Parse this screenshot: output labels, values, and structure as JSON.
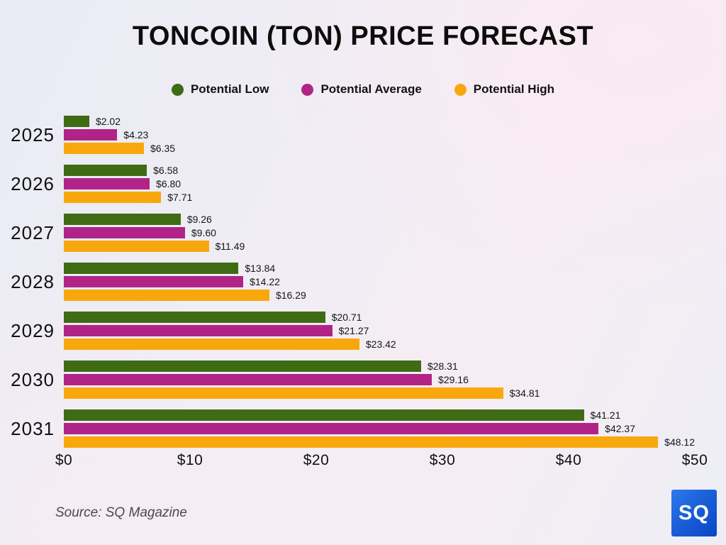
{
  "title": "TONCOIN (TON) PRICE FORECAST",
  "legend": {
    "items": [
      {
        "label": "Potential Low",
        "color": "#3f6b15"
      },
      {
        "label": "Potential Average",
        "color": "#b12487"
      },
      {
        "label": "Potential High",
        "color": "#f8a80d"
      }
    ]
  },
  "chart_data": {
    "type": "bar",
    "orientation": "horizontal",
    "title": "TONCOIN (TON) PRICE FORECAST",
    "categories": [
      "2025",
      "2026",
      "2027",
      "2028",
      "2029",
      "2030",
      "2031"
    ],
    "series": [
      {
        "name": "Potential Low",
        "color": "#3f6b15",
        "values": [
          2.02,
          6.58,
          9.26,
          13.84,
          20.71,
          28.31,
          41.21
        ],
        "value_labels": [
          "$2.02",
          "$6.58",
          "$9.26",
          "$13.84",
          "$20.71",
          "$28.31",
          "$41.21"
        ]
      },
      {
        "name": "Potential Average",
        "color": "#b12487",
        "values": [
          4.23,
          6.8,
          9.6,
          14.22,
          21.27,
          29.16,
          42.37
        ],
        "value_labels": [
          "$4.23",
          "$6.80",
          "$9.60",
          "$14.22",
          "$21.27",
          "$29.16",
          "$42.37"
        ]
      },
      {
        "name": "Potential High",
        "color": "#f8a80d",
        "values": [
          6.35,
          7.71,
          11.49,
          16.29,
          23.42,
          34.81,
          48.12
        ],
        "value_labels": [
          "$6.35",
          "$7.71",
          "$11.49",
          "$16.29",
          "$23.42",
          "$34.81",
          "$48.12"
        ]
      }
    ],
    "xlim": [
      0,
      50
    ],
    "x_ticks": [
      {
        "label": "$0",
        "value": 0
      },
      {
        "label": "$10",
        "value": 10
      },
      {
        "label": "$20",
        "value": 20
      },
      {
        "label": "$30",
        "value": 30
      },
      {
        "label": "$40",
        "value": 40
      },
      {
        "label": "$50",
        "value": 50
      }
    ],
    "grid": false,
    "legend_position": "top"
  },
  "source": {
    "text": "Source: SQ Magazine"
  },
  "logo": {
    "text": "SQ",
    "bg_from": "#2d7aec",
    "bg_to": "#0a46c6",
    "text_color": "#ffffff"
  }
}
